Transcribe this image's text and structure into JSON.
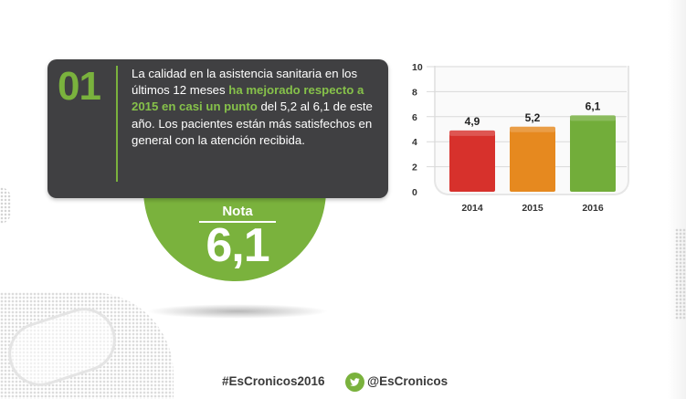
{
  "card": {
    "number": "01",
    "text_parts": {
      "intro": "La calidad en la asistencia sanitaria en los últimos 12 meses ",
      "highlight": "ha mejorado respecto a 2015 en casi un punto",
      "rest": " del 5,2 al 6,1 de este año. Los pacientes están más satisfechos en general con la atención recibida."
    }
  },
  "score": {
    "label": "Nota",
    "value": "6,1"
  },
  "chart_data": {
    "type": "bar",
    "categories": [
      "2014",
      "2015",
      "2016"
    ],
    "values": [
      4.9,
      5.2,
      6.1
    ],
    "value_labels": [
      "4,9",
      "5,2",
      "6,1"
    ],
    "bar_colors": [
      "#d7312c",
      "#e6891f",
      "#72ad3a"
    ],
    "ylim": [
      0,
      10
    ],
    "yticks": [
      0,
      2,
      4,
      6,
      8,
      10
    ],
    "grid": true,
    "title": "",
    "xlabel": "",
    "ylabel": ""
  },
  "footer": {
    "hashtag": "#EsCronicos2016",
    "handle": "@EsCronicos",
    "icon": "twitter-icon"
  },
  "colors": {
    "accent_green": "#7ab23d",
    "card_bg": "#404042"
  }
}
